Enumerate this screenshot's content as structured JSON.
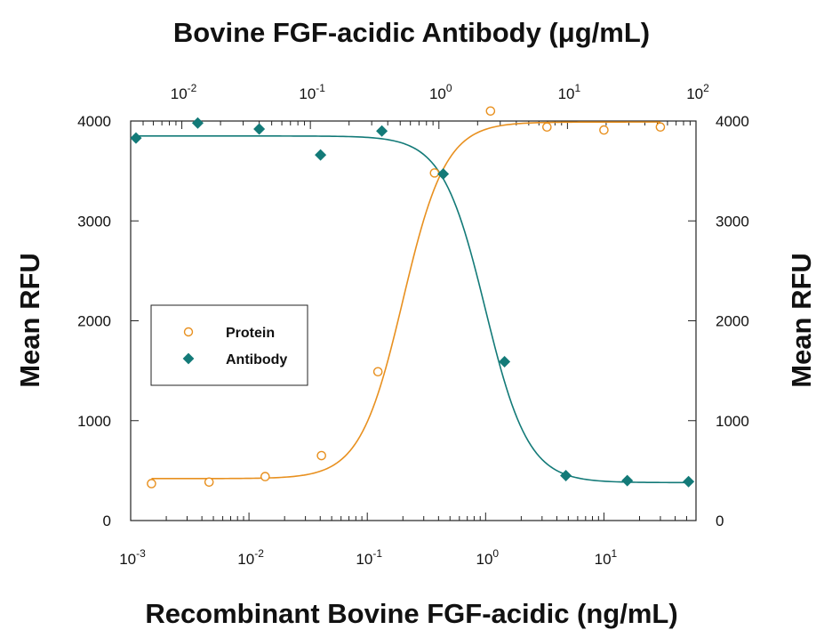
{
  "chart_data": {
    "type": "scatter",
    "title": "",
    "xlabel": "Recombinant Bovine FGF-acidic  (ng/mL)",
    "x2label": "Bovine FGF-acidic Antibody (μg/mL)",
    "ylabel": "Mean RFU",
    "y2label": "Mean RFU",
    "xscale": "log",
    "x2scale": "log",
    "xlim": [
      0.001,
      60
    ],
    "x2lim": [
      0.004,
      100
    ],
    "ylim": [
      0,
      4000
    ],
    "grid": false,
    "legend_position": "left-middle",
    "x_ticks": [
      {
        "value": 0.001,
        "base": "10",
        "exp": "-3"
      },
      {
        "value": 0.01,
        "base": "10",
        "exp": "-2"
      },
      {
        "value": 0.1,
        "base": "10",
        "exp": "-1"
      },
      {
        "value": 1,
        "base": "10",
        "exp": "0"
      },
      {
        "value": 10,
        "base": "10",
        "exp": "1"
      }
    ],
    "x2_ticks": [
      {
        "value": 0.01,
        "base": "10",
        "exp": "-2"
      },
      {
        "value": 0.1,
        "base": "10",
        "exp": "-1"
      },
      {
        "value": 1,
        "base": "10",
        "exp": "0"
      },
      {
        "value": 10,
        "base": "10",
        "exp": "1"
      },
      {
        "value": 100,
        "base": "10",
        "exp": "2"
      }
    ],
    "y_ticks": [
      "0",
      "1000",
      "2000",
      "3000",
      "4000"
    ],
    "y2_ticks": [
      "0",
      "1000",
      "2000",
      "3000",
      "4000"
    ],
    "series": [
      {
        "name": "Protein",
        "axis": "bottom",
        "marker": "circle-open",
        "color": "#e8901f",
        "x": [
          0.0015,
          0.0046,
          0.0137,
          0.041,
          0.123,
          0.37,
          1.1,
          3.3,
          10,
          30
        ],
        "y": [
          370,
          385,
          440,
          650,
          1490,
          3480,
          4100,
          3940,
          3910,
          3940
        ],
        "fit": {
          "bottom": 420,
          "top": 3990,
          "ec50": 0.2,
          "hill": 2.4
        }
      },
      {
        "name": "Antibody",
        "axis": "top",
        "marker": "diamond-filled",
        "color": "#137a78",
        "x": [
          0.0044,
          0.0133,
          0.04,
          0.12,
          0.36,
          1.08,
          3.24,
          9.72,
          29.2,
          87.5
        ],
        "y": [
          3830,
          3980,
          3920,
          3660,
          3900,
          3470,
          1590,
          450,
          400,
          390
        ],
        "fit": {
          "bottom": 380,
          "top": 3850,
          "ec50": 2.3,
          "hill": -2.6
        }
      }
    ]
  }
}
